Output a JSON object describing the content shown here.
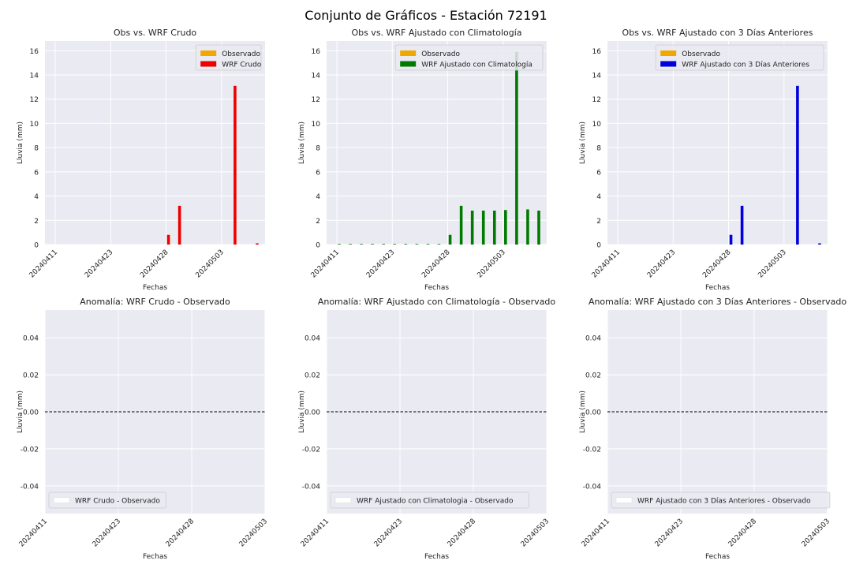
{
  "figure": {
    "suptitle": "Conjunto de Gráficos - Estación 72191"
  },
  "colors": {
    "observed": "#f0a800",
    "raw": "#ee0000",
    "clim": "#007a00",
    "prev": "#0000dd",
    "plot_bg": "#eaeaf2",
    "grid": "#ffffff"
  },
  "chart_data": [
    {
      "type": "bar",
      "title": "Obs vs. WRF Crudo",
      "xlabel": "Fechas",
      "ylabel": "Lluvia (mm)",
      "ylim": [
        0,
        16.8
      ],
      "yticks": [
        0,
        2,
        4,
        6,
        8,
        10,
        12,
        14,
        16
      ],
      "xtick_labels": [
        "20240411",
        "20240423",
        "20240428",
        "20240503"
      ],
      "xtick_positions": [
        0,
        5,
        10,
        15
      ],
      "legend_position": "upper right",
      "series": [
        {
          "name": "Observado",
          "color_key": "observed",
          "values": [
            0,
            0,
            0,
            0,
            0,
            0,
            0,
            0,
            0,
            0,
            0,
            0,
            0,
            0,
            0,
            0,
            0,
            0,
            0
          ]
        },
        {
          "name": "WRF Crudo",
          "color_key": "raw",
          "values": [
            0,
            0,
            0,
            0,
            0,
            0,
            0,
            0,
            0,
            0,
            0.8,
            3.2,
            0,
            0,
            0,
            0,
            13.1,
            0,
            0.1
          ]
        }
      ]
    },
    {
      "type": "bar",
      "title": "Obs vs. WRF Ajustado con Climatología",
      "xlabel": "Fechas",
      "ylabel": "Lluvia (mm)",
      "ylim": [
        0,
        16.8
      ],
      "yticks": [
        0,
        2,
        4,
        6,
        8,
        10,
        12,
        14,
        16
      ],
      "xtick_labels": [
        "20240411",
        "20240423",
        "20240428",
        "20240503"
      ],
      "xtick_positions": [
        0,
        5,
        10,
        15
      ],
      "legend_position": "upper right",
      "series": [
        {
          "name": "Observado",
          "color_key": "observed",
          "values": [
            0,
            0,
            0,
            0,
            0,
            0,
            0,
            0,
            0,
            0,
            0,
            0,
            0,
            0,
            0,
            0,
            0,
            0,
            0
          ]
        },
        {
          "name": "WRF Ajustado con Climatología",
          "color_key": "clim",
          "values": [
            0.05,
            0.05,
            0.05,
            0.05,
            0.05,
            0.05,
            0.05,
            0.05,
            0.05,
            0.05,
            0.8,
            3.2,
            2.8,
            2.8,
            2.8,
            2.85,
            15.9,
            2.9,
            2.8
          ]
        }
      ]
    },
    {
      "type": "bar",
      "title": "Obs vs. WRF Ajustado con 3 Días Anteriores",
      "xlabel": "Fechas",
      "ylabel": "Lluvia (mm)",
      "ylim": [
        0,
        16.8
      ],
      "yticks": [
        0,
        2,
        4,
        6,
        8,
        10,
        12,
        14,
        16
      ],
      "xtick_labels": [
        "20240411",
        "20240423",
        "20240428",
        "20240503"
      ],
      "xtick_positions": [
        0,
        5,
        10,
        15
      ],
      "legend_position": "upper right",
      "series": [
        {
          "name": "Observado",
          "color_key": "observed",
          "values": [
            0,
            0,
            0,
            0,
            0,
            0,
            0,
            0,
            0,
            0,
            0,
            0,
            0,
            0,
            0,
            0,
            0,
            0,
            0
          ]
        },
        {
          "name": "WRF Ajustado con 3 Días Anteriores",
          "color_key": "prev",
          "values": [
            0,
            0,
            0,
            0,
            0,
            0,
            0,
            0,
            0,
            0,
            0.8,
            3.2,
            0,
            0,
            0,
            0,
            13.1,
            0,
            0.1
          ]
        }
      ]
    },
    {
      "type": "line",
      "title": "Anomalía: WRF Crudo - Observado",
      "xlabel": "Fechas",
      "ylabel": "Lluvia (mm)",
      "ylim": [
        -0.055,
        0.055
      ],
      "yticks": [
        -0.04,
        -0.02,
        0.0,
        0.02,
        0.04
      ],
      "xtick_labels": [
        "20240411",
        "20240423",
        "20240428",
        "20240503"
      ],
      "xlim": [
        0,
        3
      ],
      "zero_line": 0,
      "legend_position": "lower left",
      "series": [
        {
          "name": "WRF Crudo - Observado",
          "values": []
        }
      ]
    },
    {
      "type": "line",
      "title": "Anomalía: WRF Ajustado con Climatología - Observado",
      "xlabel": "Fechas",
      "ylabel": "Lluvia (mm)",
      "ylim": [
        -0.055,
        0.055
      ],
      "yticks": [
        -0.04,
        -0.02,
        0.0,
        0.02,
        0.04
      ],
      "xtick_labels": [
        "20240411",
        "20240423",
        "20240428",
        "20240503"
      ],
      "xlim": [
        0,
        3
      ],
      "zero_line": 0,
      "legend_position": "lower left",
      "series": [
        {
          "name": "WRF Ajustado con Climatologia - Observado",
          "values": []
        }
      ]
    },
    {
      "type": "line",
      "title": "Anomalía: WRF Ajustado con 3 Días Anteriores - Observado",
      "xlabel": "Fechas",
      "ylabel": "Lluvia (mm)",
      "ylim": [
        -0.055,
        0.055
      ],
      "yticks": [
        -0.04,
        -0.02,
        0.0,
        0.02,
        0.04
      ],
      "xtick_labels": [
        "20240411",
        "20240423",
        "20240428",
        "20240503"
      ],
      "xlim": [
        0,
        3
      ],
      "zero_line": 0,
      "legend_position": "lower left",
      "series": [
        {
          "name": "WRF Ajustado con 3 Días Anteriores - Observado",
          "values": []
        }
      ]
    }
  ]
}
